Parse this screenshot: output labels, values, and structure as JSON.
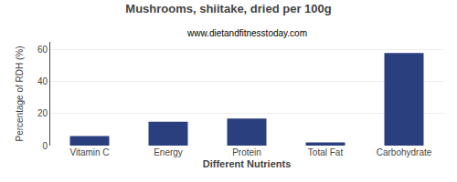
{
  "chart_data": {
    "type": "bar",
    "title": "Mushrooms, shiitake, dried per 100g",
    "subtitle": "www.dietandfitnesstoday.com",
    "xlabel": "Different Nutrients",
    "ylabel": "Percentage of RDH (%)",
    "categories": [
      "Vitamin C",
      "Energy",
      "Protein",
      "Total Fat",
      "Carbohydrate"
    ],
    "values": [
      6,
      15,
      17,
      2,
      58
    ],
    "color": "#2a3f7e",
    "ylim": [
      0,
      65
    ],
    "yticks": [
      0,
      20,
      40,
      60
    ],
    "grid": true
  }
}
